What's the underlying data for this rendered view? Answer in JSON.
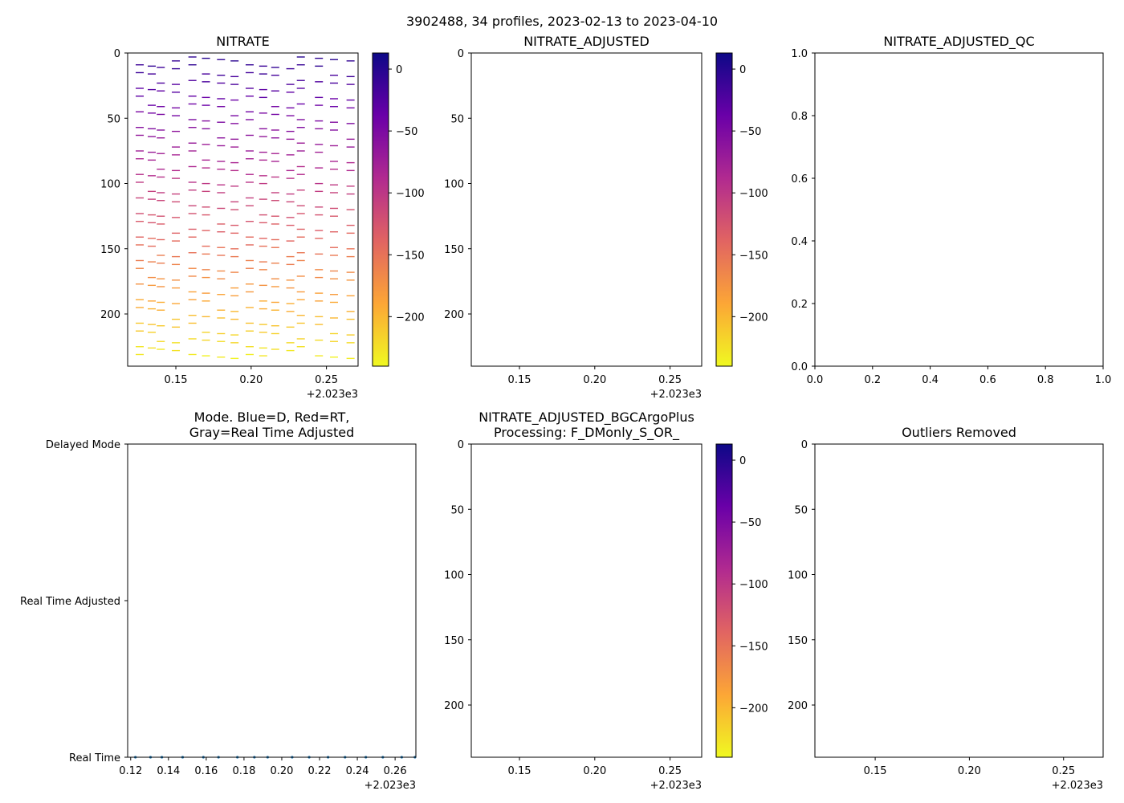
{
  "figure": {
    "title": "3902488, 34 profiles, 2023-02-13 to 2023-04-10"
  },
  "colormap": [
    "#f0f921",
    "#fca636",
    "#e16462",
    "#b12a90",
    "#6a00a8",
    "#0d0887"
  ],
  "chart_data": [
    {
      "id": "nitrate",
      "type": "heatmap",
      "title": "NITRATE",
      "xlim": [
        2023.118,
        2023.271
      ],
      "ylim": [
        240,
        0
      ],
      "xticks": [
        2023.15,
        2023.2,
        2023.25
      ],
      "xtick_labels": [
        "0.15",
        "0.20",
        "0.25"
      ],
      "x_offset_label": "+2.023e3",
      "yticks": [
        0,
        50,
        100,
        150,
        200
      ],
      "ytick_labels": [
        "0",
        "50",
        "100",
        "150",
        "200"
      ],
      "colorbar": {
        "range": [
          -240,
          13
        ],
        "ticks": [
          0,
          -50,
          -100,
          -150,
          -200
        ],
        "tick_labels": [
          "0",
          "−50",
          "−100",
          "−150",
          "−200"
        ]
      },
      "profile_times": [
        2023.126,
        2023.134,
        2023.14,
        2023.15,
        2023.161,
        2023.17,
        2023.18,
        2023.189,
        2023.199,
        2023.208,
        2023.216,
        2023.226,
        2023.233,
        2023.245,
        2023.255,
        2023.266
      ],
      "depth_step": 6,
      "value_model": "nitrate = -depth (approximately); values recorded per profile"
    },
    {
      "id": "nitrate_adjusted",
      "type": "heatmap",
      "title": "NITRATE_ADJUSTED",
      "xlim": [
        2023.118,
        2023.271
      ],
      "ylim": [
        240,
        0
      ],
      "xticks": [
        2023.15,
        2023.2,
        2023.25
      ],
      "xtick_labels": [
        "0.15",
        "0.20",
        "0.25"
      ],
      "x_offset_label": "+2.023e3",
      "yticks": [
        0,
        50,
        100,
        150,
        200
      ],
      "ytick_labels": [
        "0",
        "50",
        "100",
        "150",
        "200"
      ],
      "colorbar": {
        "range": [
          -240,
          13
        ],
        "ticks": [
          0,
          -50,
          -100,
          -150,
          -200
        ],
        "tick_labels": [
          "0",
          "−50",
          "−100",
          "−150",
          "−200"
        ]
      }
    },
    {
      "id": "nitrate_adjusted_qc",
      "type": "scatter",
      "title": "NITRATE_ADJUSTED_QC",
      "xlim": [
        0,
        1
      ],
      "ylim": [
        0,
        1
      ],
      "xticks": [
        0,
        0.2,
        0.4,
        0.6,
        0.8,
        1.0
      ],
      "xtick_labels": [
        "0.0",
        "0.2",
        "0.4",
        "0.6",
        "0.8",
        "1.0"
      ],
      "yticks": [
        0,
        0.2,
        0.4,
        0.6,
        0.8,
        1.0
      ],
      "ytick_labels": [
        "0.0",
        "0.2",
        "0.4",
        "0.6",
        "0.8",
        "1.0"
      ]
    },
    {
      "id": "mode",
      "type": "scatter",
      "title_lines": [
        "Mode. Blue=D, Red=RT,",
        "Gray=Real Time Adjusted"
      ],
      "xlim": [
        2023.1184,
        2023.271
      ],
      "xticks": [
        2023.12,
        2023.14,
        2023.16,
        2023.18,
        2023.2,
        2023.22,
        2023.24,
        2023.26
      ],
      "xtick_labels": [
        "0.12",
        "0.14",
        "0.16",
        "0.18",
        "0.20",
        "0.22",
        "0.24",
        "0.26"
      ],
      "x_offset_label": "+2.023e3",
      "categories": [
        "Real Time",
        "Real Time Adjusted",
        "Delayed Mode"
      ],
      "points": {
        "x": [
          2023.1225,
          2023.1305,
          2023.1365,
          2023.1475,
          2023.1585,
          2023.1665,
          2023.1765,
          2023.1855,
          2023.1925,
          2023.2055,
          2023.2145,
          2023.2245,
          2023.2335,
          2023.2445,
          2023.2535,
          2023.2635,
          2023.2705
        ],
        "category": "Real Time"
      }
    },
    {
      "id": "bgcargoplus",
      "type": "heatmap",
      "title_lines": [
        "NITRATE_ADJUSTED_BGCArgoPlus",
        "Processing: F_DMonly_S_OR_"
      ],
      "xlim": [
        2023.118,
        2023.271
      ],
      "ylim": [
        240,
        0
      ],
      "xticks": [
        2023.15,
        2023.2,
        2023.25
      ],
      "xtick_labels": [
        "0.15",
        "0.20",
        "0.25"
      ],
      "x_offset_label": "+2.023e3",
      "yticks": [
        0,
        50,
        100,
        150,
        200
      ],
      "ytick_labels": [
        "0",
        "50",
        "100",
        "150",
        "200"
      ],
      "colorbar": {
        "range": [
          -240,
          13
        ],
        "ticks": [
          0,
          -50,
          -100,
          -150,
          -200
        ],
        "tick_labels": [
          "0",
          "−50",
          "−100",
          "−150",
          "−200"
        ]
      }
    },
    {
      "id": "outliers",
      "type": "heatmap",
      "title": "Outliers Removed",
      "xlim": [
        2023.118,
        2023.271
      ],
      "ylim": [
        240,
        0
      ],
      "xticks": [
        2023.15,
        2023.2,
        2023.25
      ],
      "xtick_labels": [
        "0.15",
        "0.20",
        "0.25"
      ],
      "x_offset_label": "+2.023e3",
      "yticks": [
        0,
        50,
        100,
        150,
        200
      ],
      "ytick_labels": [
        "0",
        "50",
        "100",
        "150",
        "200"
      ]
    }
  ]
}
